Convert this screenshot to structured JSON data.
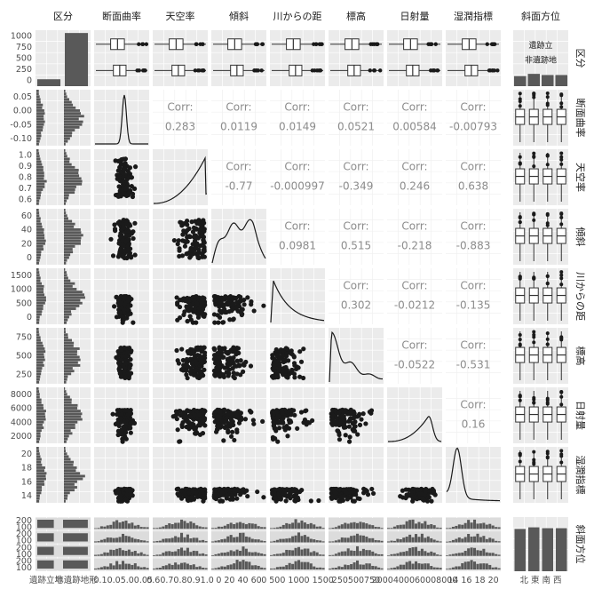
{
  "chart_data": {
    "type": "pairs-matrix",
    "variables": [
      "区分",
      "断面曲率",
      "天空率",
      "傾斜",
      "川からの距離",
      "標高",
      "日射量",
      "湿潤指標",
      "斜面方位"
    ],
    "strip_labels": {
      "top": [
        "区分",
        "断面曲率",
        "天空率",
        "傾斜",
        "川からの距",
        "標高",
        "日射量",
        "湿潤指標",
        "斜面方位"
      ],
      "right": [
        "区分",
        "断面曲率",
        "天空率",
        "傾斜",
        "川からの距",
        "標高",
        "日射量",
        "湿潤指標",
        "斜面方位"
      ]
    },
    "kubun": {
      "categories": [
        "遺跡立地",
        "非遺跡地形"
      ],
      "counts": [
        130,
        1000
      ],
      "y_ticks": [
        "1000",
        "750",
        "500",
        "250",
        "0"
      ]
    },
    "aspect": {
      "categories": [
        "北",
        "東",
        "南",
        "西"
      ],
      "counts": [
        260,
        270,
        265,
        265
      ]
    },
    "kubun_boxlabels": [
      "遺跡立",
      "非遺跡地"
    ],
    "corr_label": "Corr:",
    "correlations": [
      {
        "row": 2,
        "col": 3,
        "value": "0.283"
      },
      {
        "row": 2,
        "col": 4,
        "value": "0.0119"
      },
      {
        "row": 2,
        "col": 5,
        "value": "0.0149"
      },
      {
        "row": 2,
        "col": 6,
        "value": "0.0521"
      },
      {
        "row": 2,
        "col": 7,
        "value": "0.00584"
      },
      {
        "row": 2,
        "col": 8,
        "value": "-0.00793"
      },
      {
        "row": 3,
        "col": 4,
        "value": "-0.77"
      },
      {
        "row": 3,
        "col": 5,
        "value": "-0.000997"
      },
      {
        "row": 3,
        "col": 6,
        "value": "-0.349"
      },
      {
        "row": 3,
        "col": 7,
        "value": "0.246"
      },
      {
        "row": 3,
        "col": 8,
        "value": "0.638"
      },
      {
        "row": 4,
        "col": 5,
        "value": "0.0981"
      },
      {
        "row": 4,
        "col": 6,
        "value": "0.515"
      },
      {
        "row": 4,
        "col": 7,
        "value": "-0.218"
      },
      {
        "row": 4,
        "col": 8,
        "value": "-0.883"
      },
      {
        "row": 5,
        "col": 6,
        "value": "0.302"
      },
      {
        "row": 5,
        "col": 7,
        "value": "-0.0212"
      },
      {
        "row": 5,
        "col": 8,
        "value": "-0.135"
      },
      {
        "row": 6,
        "col": 7,
        "value": "-0.0522"
      },
      {
        "row": 6,
        "col": 8,
        "value": "-0.531"
      },
      {
        "row": 7,
        "col": 8,
        "value": "0.16"
      }
    ],
    "y_axis_ticks": [
      [
        "1000",
        "750",
        "500",
        "250",
        "0"
      ],
      [
        "0.05",
        "0.00",
        "-0.05",
        "-0.10"
      ],
      [
        "1.0",
        "0.9",
        "0.8",
        "0.7",
        "0.6"
      ],
      [
        "60",
        "40",
        "20",
        "0"
      ],
      [
        "1500",
        "1000",
        "500",
        "0"
      ],
      [
        "750",
        "500",
        "250"
      ],
      [
        "8000",
        "6000",
        "4000",
        "2000"
      ],
      [
        "20",
        "18",
        "16",
        "14"
      ],
      [
        "200",
        "100",
        "200",
        "100",
        "200",
        "100",
        "200",
        "100"
      ]
    ],
    "x_axis_ticks": [
      "遺跡立地",
      "非遺跡地形",
      "-0.10.05.00.05",
      "0.60.70.80.91.0",
      "0 20 40 60",
      "0 500 1000 1500",
      "250500750",
      "2000400060008000",
      "14 16 18 20",
      "北 東 南 西"
    ]
  },
  "colors": {
    "panel_bg": "#ebebeb",
    "grid": "#ffffff",
    "bar": "#595959",
    "ink": "#1a1a1a",
    "corr_text": "#8c8c8c",
    "axis_text": "#4d4d4d"
  }
}
